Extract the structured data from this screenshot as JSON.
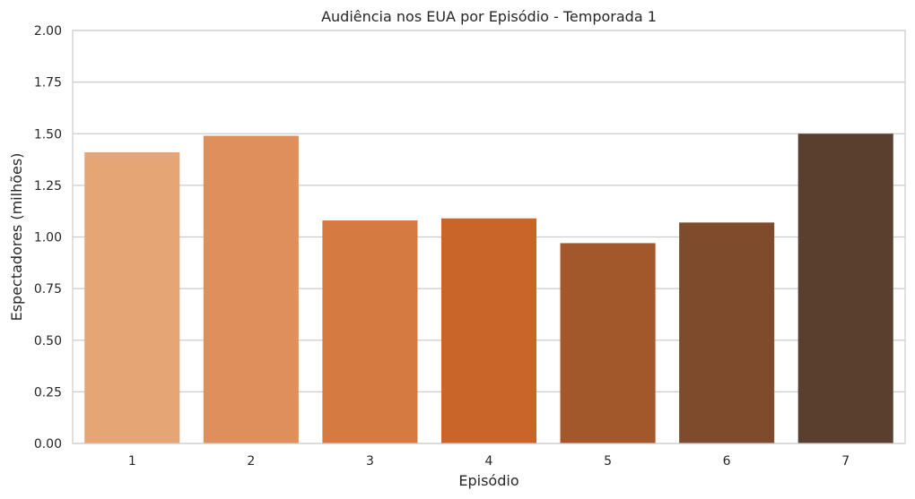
{
  "chart_data": {
    "type": "bar",
    "title": "Audiência nos EUA por Episódio - Temporada 1",
    "xlabel": "Episódio",
    "ylabel": "Espectadores (milhões)",
    "categories": [
      "1",
      "2",
      "3",
      "4",
      "5",
      "6",
      "7"
    ],
    "values": [
      1.41,
      1.49,
      1.08,
      1.09,
      0.97,
      1.07,
      1.5
    ],
    "colors": [
      "#e6a574",
      "#df8f5b",
      "#d57a40",
      "#c96528",
      "#a3582b",
      "#7e4c2d",
      "#5a3f2f"
    ],
    "ylim": [
      0,
      2
    ],
    "yticks": [
      "0.00",
      "0.25",
      "0.50",
      "0.75",
      "1.00",
      "1.25",
      "1.50",
      "1.75",
      "2.00"
    ],
    "grid": "horizontal",
    "legend": "none"
  }
}
